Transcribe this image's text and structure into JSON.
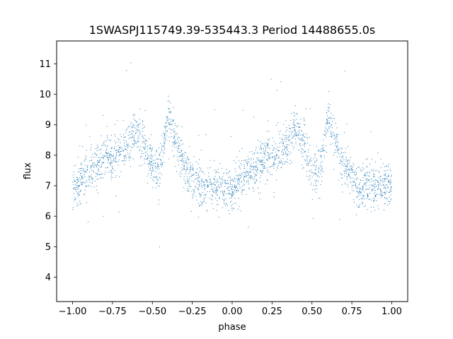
{
  "chart_data": {
    "type": "scatter",
    "title": "1SWASPJ115749.39-535443.3 Period 14488655.0s",
    "xlabel": "phase",
    "ylabel": "flux",
    "xlim": [
      -1.1,
      1.1
    ],
    "ylim": [
      3.2,
      11.75
    ],
    "xticks": [
      -1.0,
      -0.75,
      -0.5,
      -0.25,
      0.0,
      0.25,
      0.5,
      0.75,
      1.0
    ],
    "xtick_labels": [
      "−1.00",
      "−0.75",
      "−0.50",
      "−0.25",
      "0.00",
      "0.25",
      "0.50",
      "0.75",
      "1.00"
    ],
    "yticks": [
      4,
      5,
      6,
      7,
      8,
      9,
      10,
      11
    ],
    "ytick_labels": [
      "4",
      "5",
      "6",
      "7",
      "8",
      "9",
      "10",
      "11"
    ],
    "grid": false,
    "marker_color": "#1f77b4",
    "phase_profile": {
      "phase": [
        0.0,
        0.05,
        0.1,
        0.15,
        0.2,
        0.25,
        0.3,
        0.35,
        0.4,
        0.45,
        0.5,
        0.55,
        0.6,
        0.65,
        0.7,
        0.75,
        0.8,
        0.85,
        0.9,
        0.95,
        1.0
      ],
      "flux": [
        6.9,
        7.2,
        7.4,
        7.6,
        7.9,
        7.9,
        8.1,
        8.4,
        8.8,
        8.4,
        7.6,
        7.5,
        9.3,
        8.4,
        7.6,
        7.3,
        7.0,
        7.0,
        6.9,
        7.0,
        6.9
      ]
    },
    "scatter_spread": 0.35
  }
}
